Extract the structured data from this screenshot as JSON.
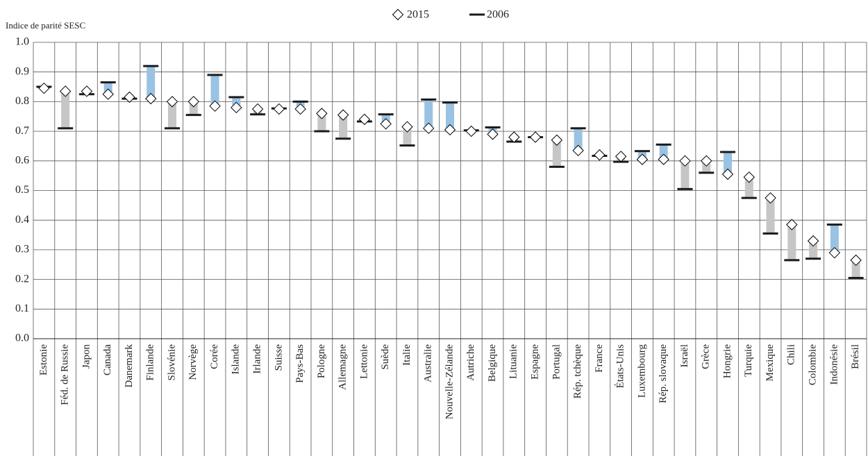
{
  "chart_data": {
    "type": "dumbbell",
    "y_label": "Indice de parité SESC",
    "categories": [
      "Estonie",
      "Féd. de Russie",
      "Japon",
      "Canada",
      "Danemark",
      "Finlande",
      "Slovénie",
      "Norvège",
      "Corée",
      "Islande",
      "Irlande",
      "Suisse",
      "Pays-Bas",
      "Pologne",
      "Allemagne",
      "Lettonie",
      "Suède",
      "Italie",
      "Australie",
      "Nouvelle-Zélande",
      "Autriche",
      "Belgique",
      "Lituanie",
      "Espagne",
      "Portugal",
      "Rép. tchèque",
      "France",
      "États-Unis",
      "Luxembourg",
      "Rép. slovaque",
      "Israël",
      "Grèce",
      "Hongrie",
      "Turquie",
      "Mexique",
      "Chili",
      "Colombie",
      "Indonésie",
      "Brésil"
    ],
    "series": [
      {
        "name": "2015",
        "marker": "diamond",
        "color": "#000000",
        "values": [
          0.845,
          0.835,
          0.835,
          0.825,
          0.815,
          0.81,
          0.8,
          0.8,
          0.785,
          0.78,
          0.775,
          0.775,
          0.775,
          0.76,
          0.755,
          0.74,
          0.725,
          0.715,
          0.71,
          0.705,
          0.7,
          0.69,
          0.68,
          0.68,
          0.67,
          0.635,
          0.62,
          0.615,
          0.605,
          0.605,
          0.6,
          0.6,
          0.555,
          0.545,
          0.475,
          0.385,
          0.33,
          0.29,
          0.265
        ]
      },
      {
        "name": "2006",
        "marker": "dash",
        "color": "#1a1a1a",
        "values": [
          0.85,
          0.71,
          0.825,
          0.865,
          0.81,
          0.92,
          0.71,
          0.755,
          0.89,
          0.815,
          0.757,
          0.777,
          0.8,
          0.7,
          0.675,
          0.733,
          0.757,
          0.652,
          0.807,
          0.797,
          0.703,
          0.713,
          0.665,
          0.68,
          0.58,
          0.71,
          0.617,
          0.597,
          0.633,
          0.655,
          0.505,
          0.56,
          0.63,
          0.475,
          0.355,
          0.265,
          0.27,
          0.385,
          0.205
        ]
      }
    ],
    "bar_colors": {
      "up": "#c6c6c6",
      "down": "#9ac2e2"
    },
    "ylim": [
      0,
      1
    ],
    "yticks": [
      {
        "value": 0,
        "label": "0.0"
      },
      {
        "value": 0.1,
        "label": "0.1"
      },
      {
        "value": 0.2,
        "label": "0.2"
      },
      {
        "value": 0.3,
        "label": "0.3"
      },
      {
        "value": 0.4,
        "label": "0.4"
      },
      {
        "value": 0.5,
        "label": "0.5"
      },
      {
        "value": 0.6,
        "label": "0.6"
      },
      {
        "value": 0.7,
        "label": "0.7"
      },
      {
        "value": 0.8,
        "label": "0.8"
      },
      {
        "value": 0.9,
        "label": "0.9"
      },
      {
        "value": 1,
        "label": "1.0"
      }
    ],
    "grid": true,
    "legend": "top"
  }
}
